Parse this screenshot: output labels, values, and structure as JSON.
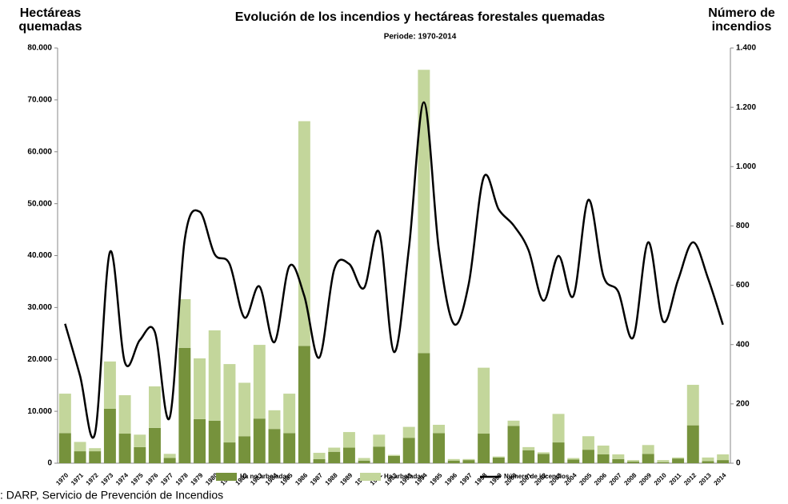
{
  "chart_data": {
    "type": "bar",
    "title": "Evolución de los incendios y hectáreas forestales quemadas",
    "subtitle": "Periode: 1970-2014",
    "y_label": "Hectáreas quemadas",
    "y2_label": "Número de incendios",
    "source": ": DARP, Servicio de Prevención de Incendios",
    "stacked": true,
    "categories": [
      "1970",
      "1971",
      "1972",
      "1973",
      "1974",
      "1975",
      "1976",
      "1977",
      "1978",
      "1979",
      "1980",
      "1981",
      "1982",
      "1983",
      "1984",
      "1985",
      "1986",
      "1987",
      "1988",
      "1989",
      "1990",
      "1991",
      "1992",
      "1993",
      "1994",
      "1995",
      "1996",
      "1997",
      "1998",
      "1999",
      "2000",
      "2001",
      "2002",
      "2003",
      "2004",
      "2005",
      "2006",
      "2007",
      "2008",
      "2009",
      "2010",
      "2011",
      "2012",
      "2013",
      "2014"
    ],
    "series": [
      {
        "name": "Ha no arboladas",
        "color": "#76923c",
        "type": "bar",
        "values": [
          5800,
          2300,
          2300,
          10500,
          5700,
          3100,
          6800,
          1000,
          22200,
          8500,
          8200,
          4000,
          5200,
          8600,
          6600,
          5800,
          22600,
          800,
          2200,
          3000,
          500,
          3200,
          1400,
          4900,
          21200,
          5800,
          500,
          600,
          5700,
          1100,
          7200,
          2500,
          1800,
          4000,
          700,
          2600,
          1700,
          800,
          300,
          1800,
          200,
          900,
          7300,
          400,
          600
        ]
      },
      {
        "name": "Ha arboladas",
        "color": "#c3d69b",
        "type": "bar",
        "values": [
          7600,
          1800,
          600,
          9100,
          7400,
          2400,
          8000,
          800,
          9400,
          11700,
          17400,
          15100,
          10300,
          14200,
          3600,
          7600,
          43300,
          1200,
          800,
          3000,
          500,
          2300,
          200,
          2100,
          54600,
          1600,
          300,
          200,
          12700,
          200,
          1000,
          600,
          300,
          5500,
          300,
          2600,
          1700,
          900,
          300,
          1700,
          400,
          200,
          7800,
          700,
          1100
        ]
      },
      {
        "name": "Número de incendios",
        "color": "#000000",
        "type": "line",
        "axis": "y2",
        "values": [
          470,
          295,
          100,
          712,
          340,
          415,
          443,
          154,
          753,
          848,
          705,
          672,
          491,
          596,
          408,
          664,
          564,
          356,
          653,
          672,
          591,
          780,
          375,
          726,
          1217,
          721,
          470,
          605,
          964,
          856,
          802,
          718,
          548,
          699,
          564,
          888,
          632,
          578,
          424,
          745,
          478,
          618,
          745,
          624,
          467
        ]
      }
    ],
    "ylim": [
      0,
      80000
    ],
    "yticks": [
      0,
      {
        "value": 10000,
        "label": "10.000"
      },
      {
        "value": 20000,
        "label": "20.000"
      },
      {
        "value": 30000,
        "label": "30.000"
      },
      {
        "value": 40000,
        "label": "40.000"
      },
      {
        "value": 50000,
        "label": "50.000"
      },
      {
        "value": 60000,
        "label": "60.000"
      },
      {
        "value": 70000,
        "label": "70.000"
      },
      {
        "value": 80000,
        "label": "80.000"
      }
    ],
    "y2lim": [
      0,
      1400
    ],
    "y2ticks": [
      0,
      200,
      400,
      600,
      800,
      {
        "value": 1000,
        "label": "1.000"
      },
      {
        "value": 1200,
        "label": "1.200"
      },
      {
        "value": 1400,
        "label": "1.400"
      }
    ],
    "legend": "bottom"
  }
}
